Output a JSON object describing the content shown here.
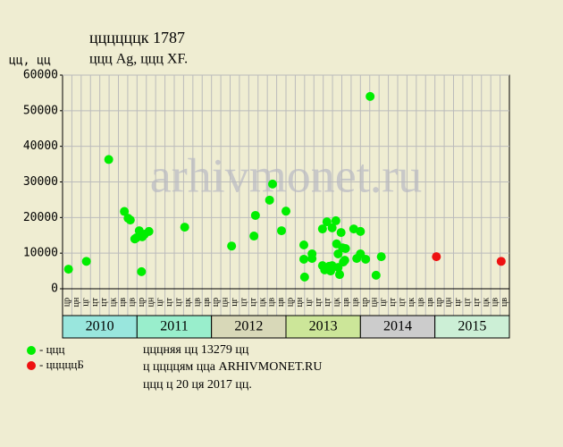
{
  "chart_data": {
    "type": "scatter",
    "title": "ццццццк 1787",
    "subtitle": "ццц Ag, ццц XF.",
    "y_label": "цц, цц",
    "watermark": "arhivmonet.ru",
    "xlim": [
      2010,
      2016
    ],
    "ylim": [
      0,
      60000
    ],
    "yticks": [
      0,
      10000,
      20000,
      30000,
      40000,
      50000,
      60000
    ],
    "grid": true,
    "period_labels": [
      "цр",
      "цн",
      "цг",
      "цт",
      "цт",
      "цк",
      "цв",
      "цв"
    ],
    "years": [
      {
        "label": "2010",
        "color": "#99e6dd"
      },
      {
        "label": "2011",
        "color": "#99eecc"
      },
      {
        "label": "2012",
        "color": "#d8d8b8"
      },
      {
        "label": "2013",
        "color": "#cce699"
      },
      {
        "label": "2014",
        "color": "#cccccc"
      },
      {
        "label": "2015",
        "color": "#ccefd6"
      }
    ],
    "series": [
      {
        "name": "- ццц",
        "color": "#00ee00",
        "x": [
          2010.08,
          2010.32,
          2010.62,
          2010.83,
          2010.88,
          2010.91,
          2010.97,
          2010.99,
          2011.03,
          2011.06,
          2011.07,
          2011.1,
          2011.16,
          2011.64,
          2012.27,
          2012.57,
          2012.59,
          2012.78,
          2012.82,
          2012.94,
          2013.0,
          2013.24,
          2013.24,
          2013.25,
          2013.35,
          2013.35,
          2013.49,
          2013.49,
          2013.52,
          2013.55,
          2013.58,
          2013.6,
          2013.62,
          2013.62,
          2013.67,
          2013.68,
          2013.7,
          2013.7,
          2013.72,
          2013.74,
          2013.76,
          2013.77,
          2013.8,
          2013.79,
          2013.91,
          2013.95,
          2014.0,
          2014.0,
          2014.07,
          2014.13,
          2014.21,
          2014.28
        ],
        "values": [
          5500,
          7700,
          36300,
          21700,
          19800,
          19300,
          14000,
          14300,
          16300,
          4800,
          14600,
          15300,
          16100,
          17300,
          12000,
          14800,
          20600,
          24900,
          29400,
          16300,
          21800,
          12300,
          8300,
          3300,
          9800,
          8500,
          16800,
          6500,
          5300,
          18800,
          6300,
          5000,
          17100,
          6500,
          19100,
          12600,
          9800,
          6000,
          4000,
          15800,
          11500,
          7500,
          11300,
          8000,
          16800,
          8500,
          16100,
          9800,
          8300,
          54000,
          3800,
          9000
        ]
      },
      {
        "name": "- цццццБ",
        "color": "#ee1111",
        "x": [
          2015.02,
          2015.89
        ],
        "values": [
          9000,
          7700
        ]
      }
    ],
    "annotations": [
      "цццняя цц 13279 цц",
      "ц ццццям цца ARHIVMONET.RU",
      "ццц ц 20 ця 2017 цц."
    ]
  }
}
